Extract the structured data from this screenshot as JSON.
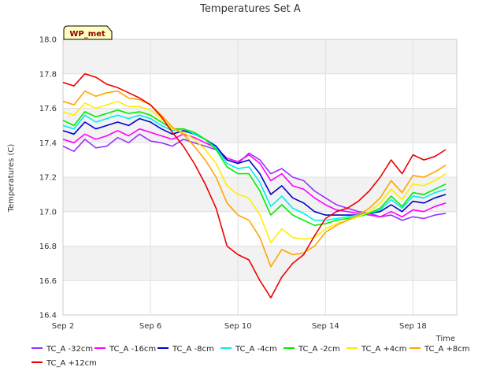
{
  "chart_data": {
    "type": "line",
    "title": "Temperatures Set A",
    "xlabel": "Time",
    "ylabel": "Temperatures (C)",
    "tag": "WP_met",
    "ylim": [
      16.4,
      18.0
    ],
    "xlim": [
      0,
      18
    ],
    "x_ticks": [
      {
        "v": 0,
        "label": "Sep 2"
      },
      {
        "v": 4,
        "label": "Sep 6"
      },
      {
        "v": 8,
        "label": "Sep 10"
      },
      {
        "v": 12,
        "label": "Sep 14"
      },
      {
        "v": 16,
        "label": "Sep 18"
      }
    ],
    "y_ticks": [
      {
        "v": 16.4,
        "label": "16.4"
      },
      {
        "v": 16.6,
        "label": "16.6"
      },
      {
        "v": 16.8,
        "label": "16.8"
      },
      {
        "v": 17.0,
        "label": "17.0"
      },
      {
        "v": 17.2,
        "label": "17.2"
      },
      {
        "v": 17.4,
        "label": "17.4"
      },
      {
        "v": 17.6,
        "label": "17.6"
      },
      {
        "v": 17.8,
        "label": "17.8"
      },
      {
        "v": 18.0,
        "label": "18.0"
      }
    ],
    "grid": true,
    "legend_position": "bottom",
    "x": [
      0,
      0.5,
      1,
      1.5,
      2,
      2.5,
      3,
      3.5,
      4,
      4.5,
      5,
      5.5,
      6,
      6.5,
      7,
      7.5,
      8,
      8.5,
      9,
      9.5,
      10,
      10.5,
      11,
      11.5,
      12,
      12.5,
      13,
      13.5,
      14,
      14.5,
      15,
      15.5,
      16,
      16.5,
      17,
      17.5
    ],
    "series": [
      {
        "name": "TC_A -32cm",
        "color": "#9b30ff",
        "values": [
          17.38,
          17.35,
          17.42,
          17.37,
          17.38,
          17.43,
          17.4,
          17.45,
          17.41,
          17.4,
          17.38,
          17.42,
          17.4,
          17.38,
          17.36,
          17.3,
          17.28,
          17.34,
          17.3,
          17.22,
          17.25,
          17.2,
          17.18,
          17.12,
          17.08,
          17.04,
          17.02,
          17.0,
          16.99,
          16.97,
          16.98,
          16.95,
          16.97,
          16.96,
          16.98,
          16.99
        ]
      },
      {
        "name": "TC_A -16cm",
        "color": "#ff00ff",
        "values": [
          17.42,
          17.4,
          17.45,
          17.42,
          17.44,
          17.47,
          17.44,
          17.48,
          17.46,
          17.44,
          17.42,
          17.45,
          17.43,
          17.4,
          17.37,
          17.31,
          17.29,
          17.33,
          17.28,
          17.18,
          17.22,
          17.15,
          17.13,
          17.08,
          17.04,
          17.01,
          17.0,
          16.99,
          16.98,
          16.97,
          17.0,
          16.97,
          17.01,
          17.0,
          17.03,
          17.05
        ]
      },
      {
        "name": "TC_A -8cm",
        "color": "#0000cd",
        "values": [
          17.47,
          17.45,
          17.52,
          17.48,
          17.5,
          17.52,
          17.5,
          17.54,
          17.52,
          17.48,
          17.45,
          17.47,
          17.45,
          17.42,
          17.38,
          17.3,
          17.28,
          17.3,
          17.22,
          17.1,
          17.15,
          17.08,
          17.05,
          17.0,
          16.98,
          16.98,
          16.98,
          16.98,
          16.99,
          17.0,
          17.04,
          17.0,
          17.06,
          17.05,
          17.08,
          17.1
        ]
      },
      {
        "name": "TC_A -4cm",
        "color": "#00eeee",
        "values": [
          17.5,
          17.48,
          17.56,
          17.52,
          17.54,
          17.56,
          17.54,
          17.56,
          17.54,
          17.5,
          17.47,
          17.48,
          17.45,
          17.42,
          17.37,
          17.28,
          17.25,
          17.26,
          17.17,
          17.03,
          17.09,
          17.02,
          16.99,
          16.95,
          16.95,
          16.96,
          16.97,
          16.98,
          16.99,
          17.01,
          17.07,
          17.02,
          17.09,
          17.08,
          17.11,
          17.13
        ]
      },
      {
        "name": "TC_A -2cm",
        "color": "#00ee00",
        "values": [
          17.53,
          17.5,
          17.58,
          17.55,
          17.57,
          17.59,
          17.57,
          17.58,
          17.56,
          17.52,
          17.48,
          17.48,
          17.46,
          17.42,
          17.36,
          17.26,
          17.22,
          17.22,
          17.12,
          16.98,
          17.04,
          16.98,
          16.95,
          16.92,
          16.93,
          16.95,
          16.96,
          16.97,
          16.99,
          17.02,
          17.09,
          17.03,
          17.11,
          17.1,
          17.13,
          17.16
        ]
      },
      {
        "name": "TC_A +4cm",
        "color": "#ffee00",
        "values": [
          17.58,
          17.56,
          17.63,
          17.6,
          17.62,
          17.64,
          17.61,
          17.61,
          17.59,
          17.54,
          17.48,
          17.46,
          17.42,
          17.36,
          17.28,
          17.15,
          17.1,
          17.08,
          16.98,
          16.82,
          16.9,
          16.85,
          16.84,
          16.85,
          16.9,
          16.93,
          16.95,
          16.97,
          17.0,
          17.05,
          17.13,
          17.07,
          17.16,
          17.15,
          17.18,
          17.22
        ]
      },
      {
        "name": "TC_A +8cm",
        "color": "#ffa500",
        "values": [
          17.64,
          17.62,
          17.7,
          17.67,
          17.69,
          17.7,
          17.66,
          17.65,
          17.62,
          17.56,
          17.49,
          17.45,
          17.38,
          17.3,
          17.2,
          17.05,
          16.98,
          16.95,
          16.85,
          16.68,
          16.78,
          16.75,
          16.76,
          16.8,
          16.88,
          16.92,
          16.95,
          16.98,
          17.02,
          17.08,
          17.18,
          17.11,
          17.21,
          17.2,
          17.23,
          17.27
        ]
      },
      {
        "name": "TC_A +12cm",
        "color": "#ee0000",
        "values": [
          17.75,
          17.73,
          17.8,
          17.78,
          17.74,
          17.72,
          17.69,
          17.66,
          17.62,
          17.55,
          17.46,
          17.38,
          17.28,
          17.16,
          17.02,
          16.8,
          16.75,
          16.72,
          16.6,
          16.5,
          16.62,
          16.7,
          16.75,
          16.86,
          16.96,
          17.0,
          17.02,
          17.06,
          17.12,
          17.2,
          17.3,
          17.22,
          17.33,
          17.3,
          17.32,
          17.36
        ]
      }
    ]
  }
}
